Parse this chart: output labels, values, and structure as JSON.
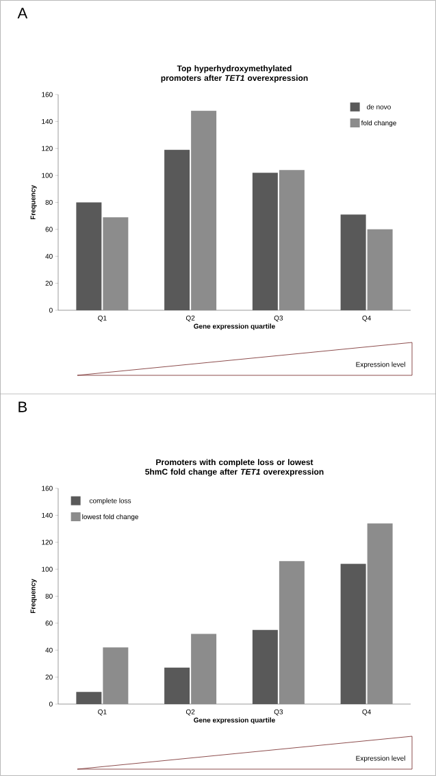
{
  "chart_data": [
    {
      "type": "bar",
      "title": "Top hyperhydroxymethylated promoters after *TET1* overexpression",
      "xlabel": "Gene expression quartile",
      "ylabel": "Frequency",
      "categories": [
        "Q1",
        "Q2",
        "Q3",
        "Q4"
      ],
      "series": [
        {
          "name": "de novo",
          "color": "#595959",
          "values": [
            80,
            119,
            102,
            71
          ]
        },
        {
          "name": "fold change",
          "color": "#8c8c8c",
          "values": [
            69,
            148,
            104,
            60
          ]
        }
      ],
      "ylim": [
        0,
        160
      ],
      "yticks": [
        0,
        20,
        40,
        60,
        80,
        100,
        120,
        140,
        160
      ],
      "legend": "top right",
      "annotations": [
        "A",
        "Expression level"
      ]
    },
    {
      "type": "bar",
      "title": "Promoters with complete loss or lowest 5hmC fold change after *TET1* overexpression",
      "xlabel": "Gene expression quartile",
      "ylabel": "Frequency",
      "categories": [
        "Q1",
        "Q2",
        "Q3",
        "Q4"
      ],
      "series": [
        {
          "name": "complete loss",
          "color": "#595959",
          "values": [
            9,
            27,
            55,
            104
          ]
        },
        {
          "name": "lowest fold change",
          "color": "#8c8c8c",
          "values": [
            42,
            52,
            106,
            134
          ]
        }
      ],
      "ylim": [
        0,
        160
      ],
      "yticks": [
        0,
        20,
        40,
        60,
        80,
        100,
        120,
        140,
        160
      ],
      "legend": "top left",
      "annotations": [
        "B",
        "Expression level"
      ]
    }
  ]
}
